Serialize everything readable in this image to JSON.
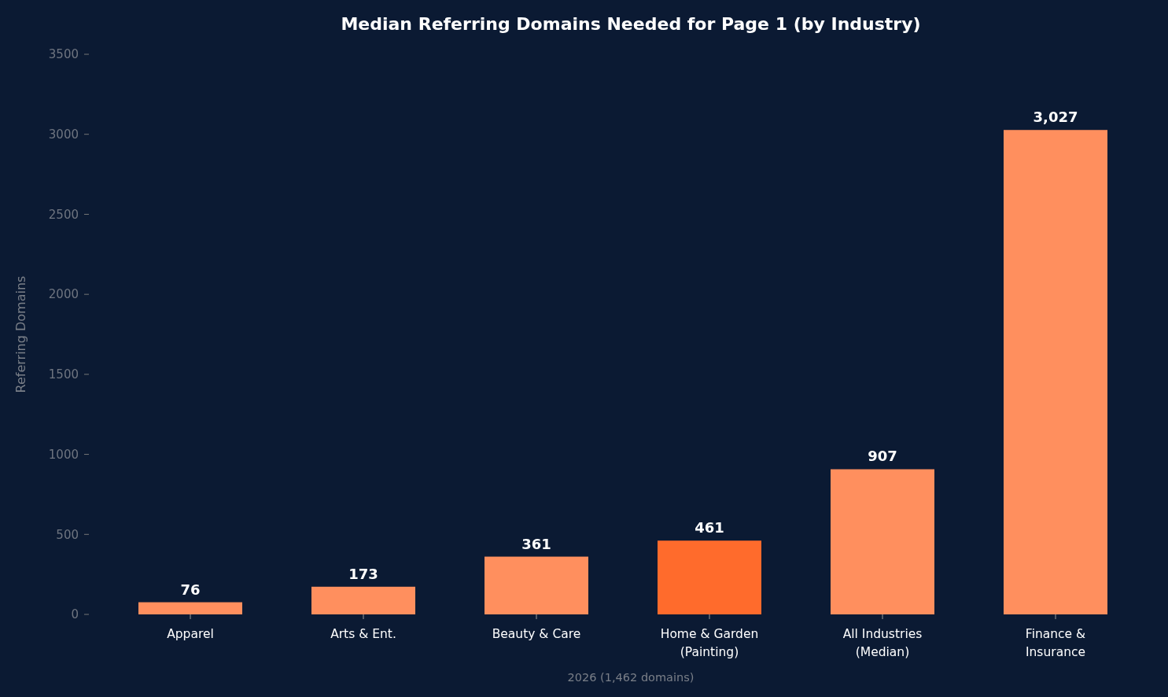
{
  "chart_data": {
    "type": "bar",
    "title": "Median Referring Domains Needed for Page 1 (by Industry)",
    "ylabel": "Referring Domains",
    "categories": [
      "Apparel",
      "Arts & Ent.",
      "Beauty & Care",
      "Home & Garden\n(Painting)",
      "All Industries\n(Median)",
      "Finance &\nInsurance"
    ],
    "values": [
      76,
      173,
      361,
      461,
      907,
      3027
    ],
    "colors": [
      "#ff8f5e",
      "#ff8f5e",
      "#ff8f5e",
      "#ff6b2c",
      "#ff8f5e",
      "#ff8f5e"
    ],
    "value_labels": [
      "76",
      "173",
      "361",
      "461",
      "907",
      "3,027"
    ],
    "ylim": [
      0,
      3500
    ],
    "yticks": [
      0,
      500,
      1000,
      1500,
      2000,
      2500,
      3000,
      3500
    ],
    "grid": false,
    "annotations": [
      "2026 (1,462 domains)"
    ]
  }
}
